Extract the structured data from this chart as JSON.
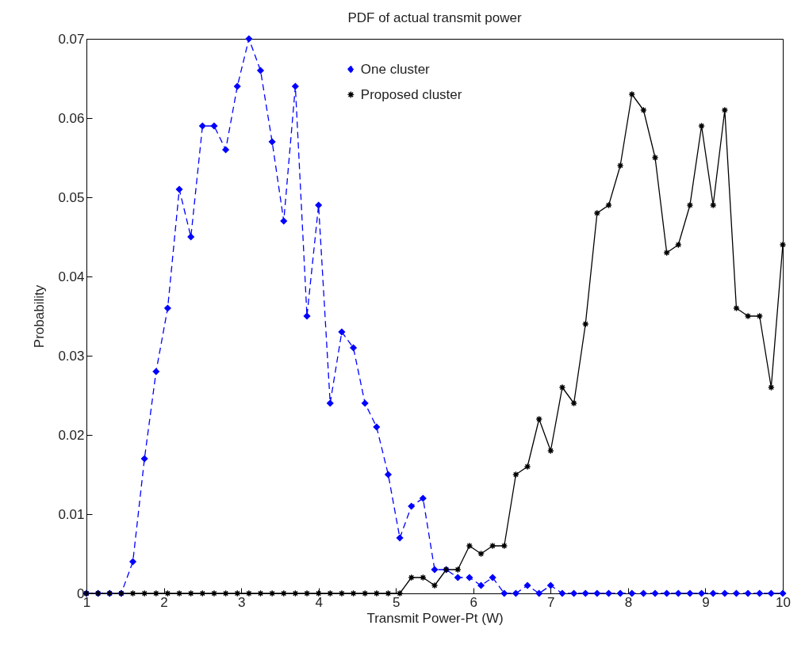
{
  "chart_data": {
    "type": "line",
    "title": "PDF of actual transmit power",
    "xlabel": "Transmit Power-Pt (W)",
    "ylabel": "Probability",
    "x": [
      1,
      1.15,
      1.3,
      1.45,
      1.6,
      1.75,
      1.9,
      2.05,
      2.2,
      2.35,
      2.5,
      2.65,
      2.8,
      2.95,
      3.1,
      3.25,
      3.4,
      3.55,
      3.7,
      3.85,
      4,
      4.15,
      4.3,
      4.45,
      4.6,
      4.75,
      4.9,
      5.05,
      5.2,
      5.35,
      5.5,
      5.65,
      5.8,
      5.95,
      6.1,
      6.25,
      6.4,
      6.55,
      6.7,
      6.85,
      7,
      7.15,
      7.3,
      7.45,
      7.6,
      7.75,
      7.9,
      8.05,
      8.2,
      8.35,
      8.5,
      8.65,
      8.8,
      8.95,
      9.1,
      9.25,
      9.4,
      9.55,
      9.7,
      9.85,
      10
    ],
    "series": [
      {
        "name": "One cluster",
        "color": "#0000ff",
        "marker": "diamond",
        "line_style": "dashed",
        "values": [
          0,
          0,
          0,
          0,
          0.004,
          0.017,
          0.028,
          0.036,
          0.051,
          0.045,
          0.059,
          0.059,
          0.056,
          0.064,
          0.07,
          0.066,
          0.057,
          0.047,
          0.064,
          0.035,
          0.049,
          0.024,
          0.033,
          0.031,
          0.024,
          0.021,
          0.015,
          0.007,
          0.011,
          0.012,
          0.003,
          0.003,
          0.002,
          0.002,
          0.001,
          0.002,
          0,
          0,
          0.001,
          0,
          0.001,
          0,
          0,
          0,
          0,
          0,
          0,
          0,
          0,
          0,
          0,
          0,
          0,
          0,
          0,
          0,
          0,
          0,
          0,
          0,
          0
        ]
      },
      {
        "name": "Proposed cluster",
        "color": "#000000",
        "marker": "star",
        "line_style": "solid",
        "values": [
          0,
          0,
          0,
          0,
          0,
          0,
          0,
          0,
          0,
          0,
          0,
          0,
          0,
          0,
          0,
          0,
          0,
          0,
          0,
          0,
          0,
          0,
          0,
          0,
          0,
          0,
          0,
          0,
          0.002,
          0.002,
          0.001,
          0.003,
          0.003,
          0.006,
          0.005,
          0.006,
          0.006,
          0.015,
          0.016,
          0.022,
          0.018,
          0.026,
          0.024,
          0.034,
          0.048,
          0.049,
          0.054,
          0.063,
          0.061,
          0.055,
          0.043,
          0.044,
          0.049,
          0.059,
          0.049,
          0.061,
          0.036,
          0.035,
          0.035,
          0.026,
          0.044
        ]
      }
    ],
    "xlim": [
      1,
      10
    ],
    "xticks": [
      1,
      2,
      3,
      4,
      5,
      6,
      7,
      8,
      9,
      10
    ],
    "ylim": [
      0,
      0.07
    ],
    "yticks": [
      0,
      0.01,
      0.02,
      0.03,
      0.04,
      0.05,
      0.06,
      0.07
    ],
    "grid": false,
    "legend": "top"
  }
}
